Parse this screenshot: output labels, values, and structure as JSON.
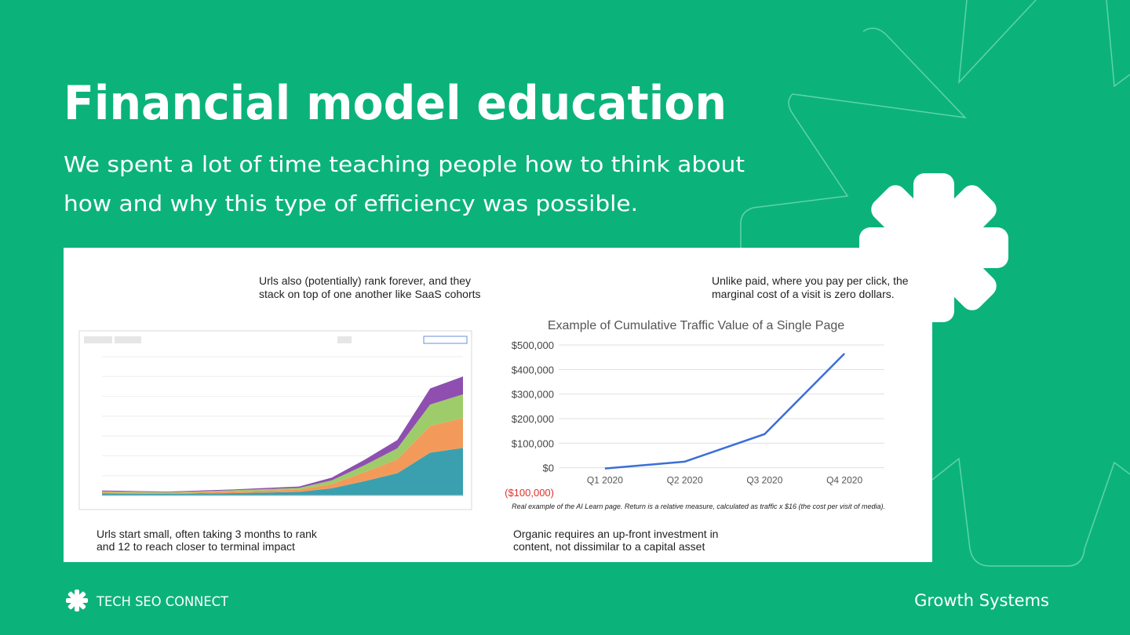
{
  "header": {
    "title": "Financial model education",
    "subtitle": [
      "We spent a lot of time teaching people how to think about",
      "how and why this type of efficiency was possible."
    ]
  },
  "panel": {
    "left_top": [
      "Urls also (potentially) rank forever, and they",
      "stack on top of one another like SaaS cohorts"
    ],
    "left_bottom": [
      "Urls start small, often taking 3 months to rank",
      "and 12 to reach closer to terminal impact"
    ],
    "right_top": [
      "Unlike paid, where you pay per click, the",
      "marginal cost of a visit is zero dollars."
    ],
    "right_bottom": [
      "Organic requires an up-front investment in",
      "content, not dissimilar to a capital asset"
    ]
  },
  "chart_data": [
    {
      "type": "stacked_area",
      "categories": [
        null,
        null,
        null,
        null,
        null,
        null,
        null,
        null,
        null,
        null,
        null,
        null
      ],
      "ylim": [
        0,
        700
      ],
      "series": [
        {
          "color": "#3aa0b0",
          "values": [
            10,
            9,
            8,
            10,
            12,
            15,
            18,
            36,
            72,
            112,
            216,
            240
          ]
        },
        {
          "color": "#f39a5a",
          "values": [
            6,
            5,
            5,
            6,
            8,
            10,
            11,
            22,
            45,
            70,
            135,
            150
          ]
        },
        {
          "color": "#9fcc6a",
          "values": [
            5,
            5,
            4,
            5,
            6,
            7,
            9,
            18,
            36,
            56,
            108,
            120
          ]
        },
        {
          "color": "#8e4fb0",
          "values": [
            4,
            3,
            3,
            4,
            4,
            6,
            7,
            14,
            27,
            42,
            81,
            90
          ]
        }
      ]
    },
    {
      "type": "line",
      "title": "Example of Cumulative Traffic Value of a Single Page",
      "categories": [
        "Q1 2020",
        "Q2 2020",
        "Q3 2020",
        "Q4 2020"
      ],
      "values": [
        -3000,
        25000,
        137000,
        465000
      ],
      "color": "#3b6fd8",
      "ylim": [
        -100000,
        500000
      ],
      "yticks": [
        {
          "value": 500000,
          "label": "$500,000"
        },
        {
          "value": 400000,
          "label": "$400,000"
        },
        {
          "value": 300000,
          "label": "$300,000"
        },
        {
          "value": 200000,
          "label": "$200,000"
        },
        {
          "value": 100000,
          "label": "$100,000"
        },
        {
          "value": 0,
          "label": "$0"
        },
        {
          "value": -100000,
          "label": "($100,000)"
        }
      ],
      "negative_tick_color": "#e0302a",
      "grid": true,
      "note": "Real example of the AI Learn page. Return is a relative measure, calculated as traffic x $16 (the cost per visit of media)."
    }
  ],
  "footer": {
    "brand": "TECH SEO CONNECT",
    "section": "Growth Systems"
  }
}
